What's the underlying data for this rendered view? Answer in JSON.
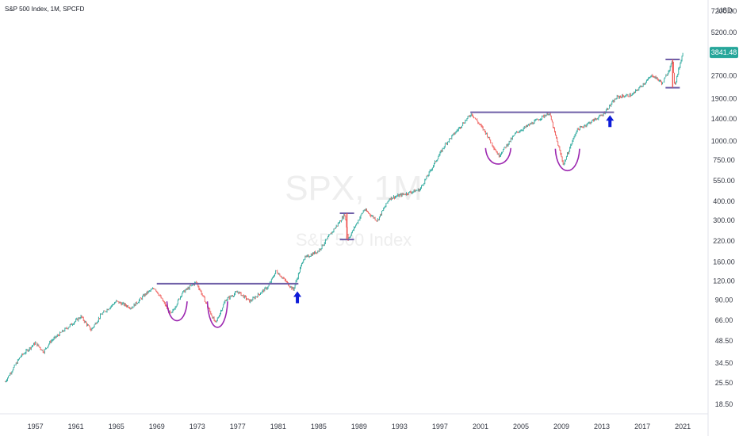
{
  "chart_data": {
    "type": "candlestick",
    "title": "S&P 500 Index, 1M, SPCFD",
    "watermark_symbol": "SPX, 1M",
    "watermark_name": "S&P 500 Index",
    "currency": "USD",
    "current_price": "3841.48",
    "y_scale": "log",
    "ylim": [
      16,
      8500
    ],
    "xlim": [
      1953.5,
      2023.5
    ],
    "x_ticks": [
      "1957",
      "1961",
      "1965",
      "1969",
      "1973",
      "1977",
      "1981",
      "1985",
      "1989",
      "1993",
      "1997",
      "2001",
      "2005",
      "2009",
      "2013",
      "2017",
      "2021"
    ],
    "y_ticks": [
      "7200.00",
      "5200.00",
      "3841.48",
      "2700.00",
      "1900.00",
      "1400.00",
      "1000.00",
      "750.00",
      "550.00",
      "400.00",
      "300.00",
      "220.00",
      "160.00",
      "120.00",
      "90.00",
      "66.00",
      "48.50",
      "34.50",
      "25.50",
      "18.50"
    ],
    "price_series": [
      [
        1954.0,
        26
      ],
      [
        1955.5,
        38
      ],
      [
        1957.0,
        47
      ],
      [
        1957.8,
        41
      ],
      [
        1958.5,
        48
      ],
      [
        1960.0,
        58
      ],
      [
        1961.5,
        70
      ],
      [
        1962.5,
        57
      ],
      [
        1963.5,
        72
      ],
      [
        1965.0,
        88
      ],
      [
        1966.5,
        80
      ],
      [
        1968.0,
        100
      ],
      [
        1968.8,
        108
      ],
      [
        1970.4,
        72
      ],
      [
        1971.5,
        100
      ],
      [
        1972.9,
        118
      ],
      [
        1974.8,
        63
      ],
      [
        1975.8,
        90
      ],
      [
        1977.0,
        102
      ],
      [
        1978.2,
        88
      ],
      [
        1980.0,
        110
      ],
      [
        1980.8,
        140
      ],
      [
        1982.5,
        105
      ],
      [
        1983.5,
        168
      ],
      [
        1985.0,
        190
      ],
      [
        1987.6,
        330
      ],
      [
        1987.9,
        225
      ],
      [
        1989.5,
        355
      ],
      [
        1990.8,
        300
      ],
      [
        1992.0,
        420
      ],
      [
        1995.0,
        480
      ],
      [
        1997.5,
        950
      ],
      [
        2000.1,
        1520
      ],
      [
        2001.5,
        1140
      ],
      [
        2002.8,
        800
      ],
      [
        2004.5,
        1130
      ],
      [
        2007.8,
        1540
      ],
      [
        2009.2,
        700
      ],
      [
        2010.5,
        1180
      ],
      [
        2013.0,
        1480
      ],
      [
        2014.5,
        1950
      ],
      [
        2016.0,
        2020
      ],
      [
        2018.0,
        2720
      ],
      [
        2019.0,
        2400
      ],
      [
        2020.0,
        3350
      ],
      [
        2020.2,
        2300
      ],
      [
        2021.0,
        3841
      ]
    ],
    "annotations": {
      "resistance_lines": [
        {
          "x1": 1969.0,
          "x2": 1983.0,
          "y": 115
        },
        {
          "x1": 2000.0,
          "x2": 2014.2,
          "y": 1550
        }
      ],
      "rounded_bottoms": [
        {
          "x1": 1970.0,
          "x2": 1972.0,
          "top": 88,
          "bottom": 64
        },
        {
          "x1": 1974.0,
          "x2": 1976.0,
          "top": 88,
          "bottom": 56
        },
        {
          "x1": 2001.5,
          "x2": 2004.0,
          "top": 900,
          "bottom": 700
        },
        {
          "x1": 2008.4,
          "x2": 2010.8,
          "top": 890,
          "bottom": 615
        }
      ],
      "breakout_arrows": [
        {
          "x": 1982.9,
          "y": 92
        },
        {
          "x": 2013.8,
          "y": 1330
        }
      ],
      "range_markers": [
        {
          "x": 1987.8,
          "high": 335,
          "low": 225
        },
        {
          "x": 2020.0,
          "high": 3450,
          "low": 2250
        }
      ]
    },
    "colors": {
      "up": "#26a69a",
      "down": "#ef5350",
      "line": "#6f5fa8",
      "arc": "#9c27b0",
      "arrow": "#0d1bd8",
      "price_box": "#26a69a"
    }
  }
}
